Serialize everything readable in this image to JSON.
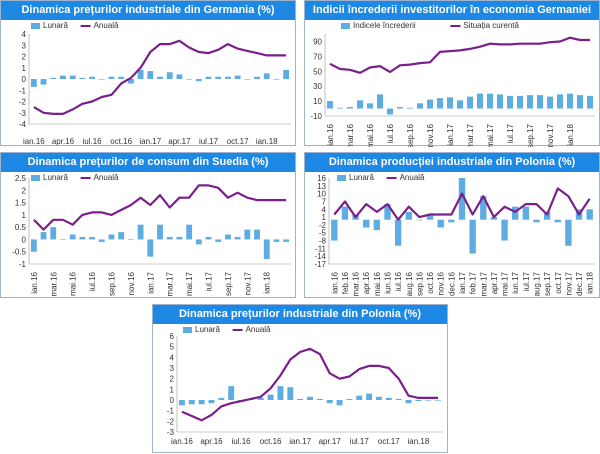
{
  "colors": {
    "bar": "#5dade2",
    "line": "#7b1f8c",
    "title_bg": "#1e88e5"
  },
  "chart_data": [
    {
      "type": "bar",
      "title": "Dinamica prețurilor industriale din Germania (%)",
      "ylim": [
        -4,
        4
      ],
      "yticks": [
        -4,
        -3,
        -2,
        -1,
        0,
        1,
        2,
        3,
        4
      ],
      "xtick_labels": [
        "ian.16",
        "apr.16",
        "iul.16",
        "oct.16",
        "ian.17",
        "apr.17",
        "iul.17",
        "oct.17",
        "ian.18"
      ],
      "xtick_step": 3,
      "series": [
        {
          "name": "Lunară",
          "kind": "bar",
          "values": [
            -0.7,
            -0.5,
            0.1,
            0.3,
            0.3,
            0.1,
            0.2,
            0.0,
            0.2,
            0.2,
            -0.4,
            0.8,
            0.7,
            0.2,
            0.6,
            0.4,
            0.0,
            -0.2,
            0.2,
            0.2,
            0.2,
            0.3,
            0.0,
            0.2,
            0.5,
            0.0,
            0.8
          ]
        },
        {
          "name": "Anuală",
          "kind": "line",
          "values": [
            -2.5,
            -3.0,
            -3.1,
            -3.1,
            -2.7,
            -2.2,
            -2.0,
            -1.6,
            -1.4,
            -0.4,
            0.1,
            1.0,
            2.4,
            3.1,
            3.1,
            3.4,
            2.8,
            2.4,
            2.3,
            2.6,
            3.1,
            2.7,
            2.5,
            2.3,
            2.1,
            2.1,
            2.1
          ]
        }
      ]
    },
    {
      "type": "bar",
      "title": "Indicii încrederii investitorilor în economia Germaniei",
      "ylim": [
        -10,
        100
      ],
      "yticks": [
        -10,
        10,
        30,
        50,
        70,
        90
      ],
      "xtick_labels": [
        "ian.16",
        "mar.16",
        "mai.16",
        "iul.16",
        "sep.16",
        "nov.16",
        "ian.17",
        "mar.17",
        "mai.17",
        "iul.17",
        "sep.17",
        "nov.17",
        "ian.18"
      ],
      "xtick_step": 2,
      "series": [
        {
          "name": "Indicele încrederii",
          "kind": "bar",
          "values": [
            10,
            1,
            2,
            11,
            7,
            19,
            -8,
            2,
            1,
            7,
            12,
            14,
            15,
            11,
            16,
            20,
            20,
            19,
            17,
            17,
            18,
            18,
            16,
            19,
            20,
            18,
            17
          ]
        },
        {
          "name": "Situația curentă",
          "kind": "line",
          "values": [
            60,
            53,
            52,
            48,
            55,
            57,
            49,
            58,
            59,
            61,
            62,
            76,
            77,
            78,
            80,
            83,
            87,
            86,
            86,
            87,
            87,
            87,
            89,
            90,
            95,
            92,
            92
          ]
        }
      ]
    },
    {
      "type": "bar",
      "title": "Dinamica prețurilor de consum din Suedia (%)",
      "ylim": [
        -1,
        2.5
      ],
      "yticks": [
        -1,
        -0.5,
        0,
        0.5,
        1,
        1.5,
        2,
        2.5
      ],
      "xtick_labels": [
        "ian.16",
        "mar.16",
        "mai.16",
        "iul.16",
        "sep.16",
        "nov.16",
        "ian.17",
        "mar.17",
        "mai.17",
        "iul.17",
        "sep.17",
        "nov.17",
        "ian.18"
      ],
      "xtick_step": 2,
      "series": [
        {
          "name": "Lunară",
          "kind": "bar",
          "values": [
            -0.5,
            0.3,
            0.5,
            0.0,
            0.2,
            0.1,
            0.1,
            -0.1,
            0.2,
            0.3,
            0.0,
            0.6,
            -0.7,
            0.6,
            0.1,
            0.1,
            0.6,
            -0.2,
            0.1,
            -0.1,
            0.2,
            0.1,
            0.4,
            0.4,
            -0.8,
            -0.1,
            -0.1
          ]
        },
        {
          "name": "Anuală",
          "kind": "line",
          "values": [
            0.8,
            0.4,
            0.8,
            0.8,
            0.6,
            1.0,
            1.1,
            1.1,
            1.0,
            1.2,
            1.4,
            1.7,
            1.4,
            1.8,
            1.3,
            1.7,
            1.7,
            2.2,
            2.2,
            2.1,
            1.7,
            1.9,
            1.7,
            1.6,
            1.6,
            1.6,
            1.6
          ]
        }
      ]
    },
    {
      "type": "bar",
      "title": "Dinamica producției industriale din Polonia (%)",
      "ylim": [
        -17,
        16
      ],
      "yticks": [
        -17,
        -14,
        -11,
        -8,
        -5,
        -2,
        1,
        4,
        7,
        10,
        13,
        16
      ],
      "xtick_labels": [
        "ian.16",
        "feb.16",
        "mar.16",
        "apr.16",
        "mai.16",
        "iun.16",
        "iul.16",
        "aug.16",
        "sep.16",
        "oct.16",
        "nov.16",
        "dec.16",
        "ian.17",
        "feb.17",
        "mar.17",
        "apr.17",
        "mai.17",
        "iun.17",
        "iul.17",
        "aug.17",
        "sep.17",
        "oct.17",
        "nov.17",
        "dec.17",
        "ian.18"
      ],
      "xtick_step": 1,
      "series": [
        {
          "name": "Lunară",
          "kind": "bar",
          "values": [
            -8,
            5,
            2,
            -3,
            -4,
            6,
            -10,
            3,
            0,
            2,
            -3,
            -1,
            16,
            -13,
            9,
            1,
            -8,
            5,
            5,
            -1,
            3,
            -1,
            -10,
            4,
            4
          ]
        },
        {
          "name": "Anuală",
          "kind": "line",
          "values": [
            2,
            7,
            1,
            6,
            3,
            6,
            0,
            5,
            1,
            2,
            2,
            2,
            10,
            2,
            9,
            1,
            5,
            3,
            6,
            6,
            2,
            12,
            9,
            2,
            8
          ]
        }
      ]
    },
    {
      "type": "bar",
      "title": "Dinamica prețurilor industriale din Polonia (%)",
      "ylim": [
        -3,
        6
      ],
      "yticks": [
        -3,
        -2,
        -1,
        0,
        1,
        2,
        3,
        4,
        5,
        6
      ],
      "xtick_labels": [
        "ian.16",
        "apr.16",
        "iul.16",
        "oct.16",
        "ian.17",
        "apr.17",
        "iul.17",
        "oct.17",
        "ian.18"
      ],
      "xtick_step": 3,
      "series": [
        {
          "name": "Lunară",
          "kind": "bar",
          "values": [
            -0.5,
            -0.4,
            -0.4,
            -0.3,
            0.2,
            1.3,
            -0.2,
            0.1,
            0.2,
            0.5,
            1.3,
            1.2,
            0.1,
            0.3,
            0.1,
            -0.3,
            -0.5,
            0.1,
            0.4,
            0.6,
            0.3,
            0.2,
            0.1,
            -0.3,
            -0.1,
            0.0,
            0.0
          ]
        },
        {
          "name": "Anuală",
          "kind": "line",
          "values": [
            -1.1,
            -1.5,
            -1.9,
            -1.4,
            -0.6,
            -0.3,
            -0.1,
            0.1,
            0.3,
            1.1,
            2.3,
            3.8,
            4.5,
            4.8,
            4.3,
            2.5,
            2.0,
            2.2,
            2.9,
            3.2,
            3.2,
            3.0,
            2.0,
            0.4,
            0.2,
            0.2,
            0.2
          ]
        }
      ]
    }
  ]
}
